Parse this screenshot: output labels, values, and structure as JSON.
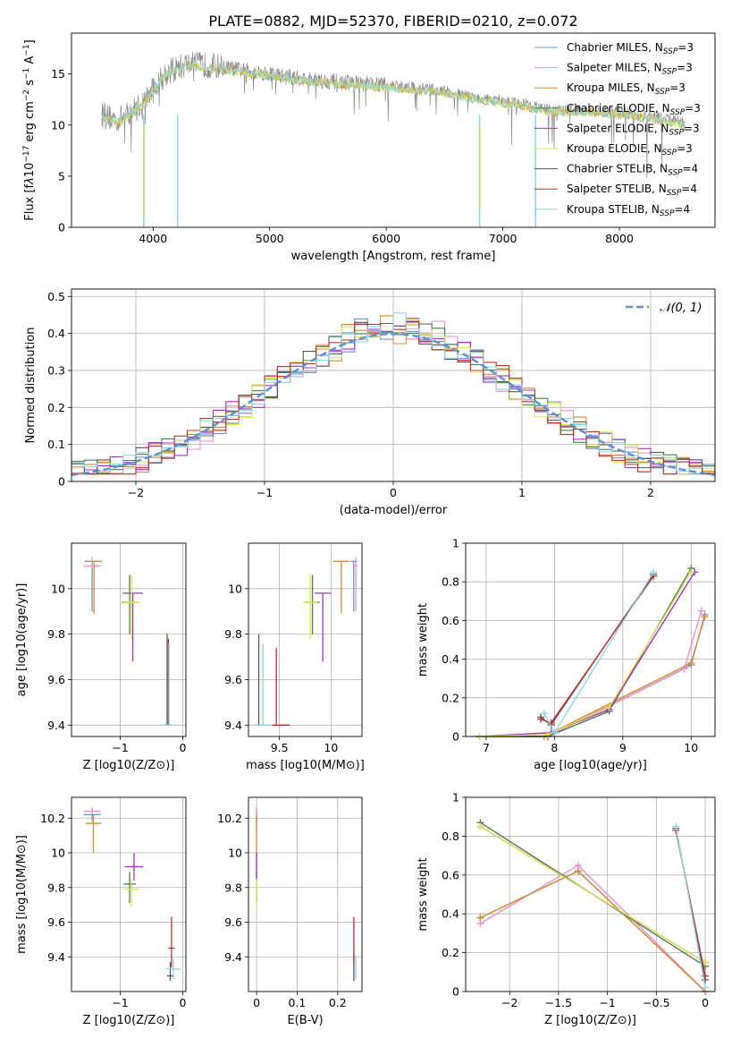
{
  "figure": {
    "title": "PLATE=0882, MJD=52370, FIBERID=0210, z=0.072"
  },
  "series": [
    {
      "name": "Chabrier MILES",
      "sub": "SSP",
      "suffix": "=3",
      "color": "#6a8fde"
    },
    {
      "name": "Salpeter MILES",
      "sub": "SSP",
      "suffix": "=3",
      "color": "#ee8ec8"
    },
    {
      "name": "Kroupa MILES",
      "sub": "SSP",
      "suffix": "=3",
      "color": "#d98a2b"
    },
    {
      "name": "Chabrier ELODIE",
      "sub": "SSP",
      "suffix": "=3",
      "color": "#4f7a52"
    },
    {
      "name": "Salpeter ELODIE",
      "sub": "SSP",
      "suffix": "=3",
      "color": "#a52fc4"
    },
    {
      "name": "Kroupa ELODIE",
      "sub": "SSP",
      "suffix": "=3",
      "color": "#d9e84c"
    },
    {
      "name": "Chabrier STELIB",
      "sub": "SSP",
      "suffix": "=4",
      "color": "#555555"
    },
    {
      "name": "Salpeter STELIB",
      "sub": "SSP",
      "suffix": "=4",
      "color": "#c0302a"
    },
    {
      "name": "Kroupa STELIB",
      "sub": "SSP",
      "suffix": "=4",
      "color": "#8ad8e6"
    }
  ],
  "chart_data": [
    {
      "id": "spectrum",
      "type": "line",
      "xlabel": "wavelength [Angstrom, rest frame]",
      "ylabel_html": "Flux [f<tspan font-style='italic'>λ</tspan>10<tspan dy='-5' font-size='9'>−17</tspan><tspan dy='5'> erg cm</tspan><tspan dy='-5' font-size='9'>−2</tspan><tspan dy='5'> s</tspan><tspan dy='-5' font-size='9'>−1</tspan><tspan dy='5'> A</tspan><tspan dy='-5' font-size='9'>−1</tspan><tspan dy='5'>]</tspan>",
      "xlim": [
        3300,
        8820
      ],
      "ylim": [
        0,
        19
      ],
      "xticks": [
        4000,
        5000,
        6000,
        7000,
        8000
      ],
      "yticks": [
        0,
        5,
        10,
        15
      ],
      "envelope_x": [
        3560,
        3700,
        3900,
        4100,
        4300,
        4500,
        4700,
        5000,
        5300,
        5600,
        5900,
        6200,
        6500,
        6800,
        7100,
        7400,
        7700,
        8000,
        8300,
        8550
      ],
      "envelope_y": [
        11.0,
        10.5,
        12.0,
        15.0,
        16.0,
        15.8,
        15.5,
        15.0,
        14.5,
        14.2,
        14.0,
        13.7,
        13.3,
        12.6,
        12.2,
        11.5,
        11.4,
        11.2,
        10.8,
        10.2
      ],
      "grid": false
    },
    {
      "id": "residuals",
      "type": "histogram",
      "xlabel": "(data-model)/error",
      "ylabel": "Normed distribution",
      "xlim": [
        -2.5,
        2.5
      ],
      "ylim": [
        0,
        0.52
      ],
      "xticks": [
        -2,
        -1,
        0,
        1,
        2
      ],
      "yticks": [
        0.0,
        0.1,
        0.2,
        0.3,
        0.4,
        0.5
      ],
      "bin_width": 0.1,
      "reference": {
        "name": "𝒩(0, 1)",
        "color": "#5b8fd6"
      },
      "grid": true
    },
    {
      "id": "age_vs_Z",
      "type": "errorbar",
      "xlabel": "Z [log10(Z/Z⊙)]",
      "ylabel": "age  [log10(age/yr)]",
      "xlim": [
        -1.78,
        0.05
      ],
      "ylim": [
        9.35,
        10.2
      ],
      "xticks": [
        -1,
        0
      ],
      "yticks": [
        9.4,
        9.6,
        9.8,
        10.0
      ],
      "points": [
        {
          "series": 0,
          "x": -1.45,
          "y": 10.12,
          "xerr": 0.12,
          "yerr_lo": 0.22,
          "yerr_hi": 0.0
        },
        {
          "series": 1,
          "x": -1.45,
          "y": 10.1,
          "xerr": 0.14,
          "yerr_lo": 0.0,
          "yerr_hi": 0.04
        },
        {
          "series": 2,
          "x": -1.42,
          "y": 10.12,
          "xerr": 0.13,
          "yerr_lo": 0.23,
          "yerr_hi": 0.0
        },
        {
          "series": 3,
          "x": -0.85,
          "y": 9.94,
          "xerr": 0.13,
          "yerr_lo": 0.14,
          "yerr_hi": 0.12
        },
        {
          "series": 4,
          "x": -0.8,
          "y": 9.98,
          "xerr": 0.16,
          "yerr_lo": 0.3,
          "yerr_hi": 0.0
        },
        {
          "series": 5,
          "x": -0.82,
          "y": 9.94,
          "xerr": 0.14,
          "yerr_lo": 0.16,
          "yerr_hi": 0.12
        },
        {
          "series": 6,
          "x": -0.25,
          "y": 9.4,
          "xerr": 0.05,
          "yerr_lo": 0.0,
          "yerr_hi": 0.4
        },
        {
          "series": 7,
          "x": -0.23,
          "y": 9.4,
          "xerr": 0.05,
          "yerr_lo": 0.0,
          "yerr_hi": 0.38
        },
        {
          "series": 8,
          "x": -0.22,
          "y": 9.4,
          "xerr": 0.1,
          "yerr_lo": 0.0,
          "yerr_hi": 0.36
        }
      ],
      "grid": true
    },
    {
      "id": "age_vs_mass",
      "type": "errorbar",
      "xlabel": "mass [log10(M/M⊙)]",
      "ylabel": "",
      "xlim": [
        9.2,
        10.3
      ],
      "ylim": [
        9.35,
        10.2
      ],
      "xticks": [
        9.5,
        10.0
      ],
      "yticks": [
        9.4,
        9.6,
        9.8,
        10.0
      ],
      "points": [
        {
          "series": 0,
          "x": 10.22,
          "y": 10.12,
          "xerr": 0.03,
          "yerr_lo": 0.22,
          "yerr_hi": 0.0
        },
        {
          "series": 1,
          "x": 10.24,
          "y": 10.1,
          "xerr": 0.02,
          "yerr_lo": 0.2,
          "yerr_hi": 0.04
        },
        {
          "series": 2,
          "x": 10.1,
          "y": 10.12,
          "xerr": 0.08,
          "yerr_lo": 0.23,
          "yerr_hi": 0.0
        },
        {
          "series": 3,
          "x": 9.82,
          "y": 9.94,
          "xerr": 0.07,
          "yerr_lo": 0.14,
          "yerr_hi": 0.12
        },
        {
          "series": 4,
          "x": 9.92,
          "y": 9.98,
          "xerr": 0.08,
          "yerr_lo": 0.3,
          "yerr_hi": 0.0
        },
        {
          "series": 5,
          "x": 9.8,
          "y": 9.94,
          "xerr": 0.07,
          "yerr_lo": 0.16,
          "yerr_hi": 0.12
        },
        {
          "series": 6,
          "x": 9.3,
          "y": 9.4,
          "xerr": 0.04,
          "yerr_lo": 0.0,
          "yerr_hi": 0.4
        },
        {
          "series": 7,
          "x": 9.47,
          "y": 9.4,
          "xerr": 0.13,
          "yerr_lo": 0.0,
          "yerr_hi": 0.34
        },
        {
          "series": 8,
          "x": 9.34,
          "y": 9.4,
          "xerr": 0.09,
          "yerr_lo": 0.0,
          "yerr_hi": 0.36
        }
      ],
      "grid": true
    },
    {
      "id": "weight_vs_age",
      "type": "line",
      "xlabel": "age  [log10(age/yr)]",
      "ylabel": "mass weight",
      "xlim": [
        6.7,
        10.35
      ],
      "ylim": [
        0,
        1.0
      ],
      "xticks": [
        7,
        8,
        9,
        10
      ],
      "yticks": [
        0.0,
        0.2,
        0.4,
        0.6,
        0.8,
        1.0
      ],
      "lines": [
        {
          "series": 0,
          "x": [
            6.9,
            7.9,
            10.0,
            10.2
          ],
          "y": [
            0.0,
            0.0,
            0.37,
            0.63
          ]
        },
        {
          "series": 1,
          "x": [
            6.9,
            7.9,
            9.9,
            10.15
          ],
          "y": [
            0.0,
            0.0,
            0.35,
            0.65
          ]
        },
        {
          "series": 2,
          "x": [
            6.9,
            7.85,
            10.0,
            10.2
          ],
          "y": [
            0.0,
            0.0,
            0.38,
            0.62
          ]
        },
        {
          "series": 3,
          "x": [
            6.9,
            7.9,
            8.8,
            10.0
          ],
          "y": [
            0.0,
            0.0,
            0.13,
            0.87
          ]
        },
        {
          "series": 4,
          "x": [
            6.9,
            7.95,
            8.8,
            10.05
          ],
          "y": [
            0.0,
            0.02,
            0.14,
            0.85
          ]
        },
        {
          "series": 5,
          "x": [
            6.9,
            7.9,
            8.8,
            10.0
          ],
          "y": [
            0.0,
            0.01,
            0.15,
            0.85
          ]
        },
        {
          "series": 6,
          "x": [
            7.8,
            7.95,
            9.45
          ],
          "y": [
            0.1,
            0.06,
            0.84
          ]
        },
        {
          "series": 7,
          "x": [
            7.8,
            7.95,
            9.45
          ],
          "y": [
            0.09,
            0.07,
            0.83
          ]
        },
        {
          "series": 8,
          "x": [
            7.85,
            8.0,
            9.45
          ],
          "y": [
            0.12,
            0.02,
            0.85
          ]
        }
      ],
      "grid": true
    },
    {
      "id": "mass_vs_Z",
      "type": "errorbar",
      "xlabel": "Z [log10(Z/Z⊙)]",
      "ylabel": "mass [log10(M/M⊙)]",
      "xlim": [
        -1.78,
        0.05
      ],
      "ylim": [
        9.2,
        10.32
      ],
      "xticks": [
        -1,
        0
      ],
      "yticks": [
        9.4,
        9.6,
        9.8,
        10.0,
        10.2
      ],
      "points": [
        {
          "series": 0,
          "x": -1.45,
          "y": 10.22,
          "xerr": 0.14,
          "yerr_lo": 0.04,
          "yerr_hi": 0.04
        },
        {
          "series": 1,
          "x": -1.45,
          "y": 10.24,
          "xerr": 0.14,
          "yerr_lo": 0.02,
          "yerr_hi": 0.02
        },
        {
          "series": 2,
          "x": -1.43,
          "y": 10.17,
          "xerr": 0.13,
          "yerr_lo": 0.17,
          "yerr_hi": 0.05
        },
        {
          "series": 3,
          "x": -0.85,
          "y": 9.82,
          "xerr": 0.1,
          "yerr_lo": 0.11,
          "yerr_hi": 0.07
        },
        {
          "series": 4,
          "x": -0.78,
          "y": 9.92,
          "xerr": 0.15,
          "yerr_lo": 0.08,
          "yerr_hi": 0.08
        },
        {
          "series": 5,
          "x": -0.82,
          "y": 9.79,
          "xerr": 0.13,
          "yerr_lo": 0.1,
          "yerr_hi": 0.06
        },
        {
          "series": 6,
          "x": -0.2,
          "y": 9.29,
          "xerr": 0.05,
          "yerr_lo": 0.03,
          "yerr_hi": 0.08
        },
        {
          "series": 7,
          "x": -0.18,
          "y": 9.45,
          "xerr": 0.05,
          "yerr_lo": 0.11,
          "yerr_hi": 0.18
        },
        {
          "series": 8,
          "x": -0.15,
          "y": 9.33,
          "xerr": 0.12,
          "yerr_lo": 0.06,
          "yerr_hi": 0.06
        }
      ],
      "grid": true
    },
    {
      "id": "mass_vs_ebv",
      "type": "errorbar",
      "xlabel": "E(B-V)",
      "ylabel": "",
      "xlim": [
        -0.02,
        0.26
      ],
      "ylim": [
        9.2,
        10.32
      ],
      "xticks": [
        0.0,
        0.1,
        0.2
      ],
      "yticks": [
        9.4,
        9.6,
        9.8,
        10.0,
        10.2
      ],
      "points": [
        {
          "series": 0,
          "x": 0.0,
          "y": 10.22,
          "xerr": 0.0,
          "yerr_lo": 0.04,
          "yerr_hi": 0.04
        },
        {
          "series": 1,
          "x": 0.0,
          "y": 10.18,
          "xerr": 0.0,
          "yerr_lo": 0.06,
          "yerr_hi": 0.08
        },
        {
          "series": 2,
          "x": 0.0,
          "y": 10.1,
          "xerr": 0.0,
          "yerr_lo": 0.18,
          "yerr_hi": 0.12
        },
        {
          "series": 3,
          "x": 0.0,
          "y": 9.82,
          "xerr": 0.0,
          "yerr_lo": 0.11,
          "yerr_hi": 0.07
        },
        {
          "series": 4,
          "x": 0.0,
          "y": 9.92,
          "xerr": 0.0,
          "yerr_lo": 0.08,
          "yerr_hi": 0.08
        },
        {
          "series": 5,
          "x": 0.0,
          "y": 9.79,
          "xerr": 0.0,
          "yerr_lo": 0.1,
          "yerr_hi": 0.06
        },
        {
          "series": 6,
          "x": 0.24,
          "y": 9.35,
          "xerr": 0.0,
          "yerr_lo": 0.09,
          "yerr_hi": 0.06
        },
        {
          "series": 7,
          "x": 0.24,
          "y": 9.47,
          "xerr": 0.0,
          "yerr_lo": 0.12,
          "yerr_hi": 0.16
        },
        {
          "series": 8,
          "x": 0.245,
          "y": 9.33,
          "xerr": 0.0,
          "yerr_lo": 0.06,
          "yerr_hi": 0.08
        }
      ],
      "grid": true
    },
    {
      "id": "weight_vs_Z",
      "type": "line",
      "xlabel": "Z [log10(Z/Z⊙)]",
      "ylabel": "mass weight",
      "xlim": [
        -2.45,
        0.1
      ],
      "ylim": [
        0,
        1.0
      ],
      "xticks": [
        -2.0,
        -1.5,
        -1.0,
        -0.5,
        0.0
      ],
      "yticks": [
        0.0,
        0.2,
        0.4,
        0.6,
        0.8,
        1.0
      ],
      "lines": [
        {
          "series": 0,
          "x": [
            -2.3,
            -1.3,
            0.0
          ],
          "y": [
            0.38,
            0.62,
            0.0
          ]
        },
        {
          "series": 1,
          "x": [
            -2.3,
            -1.3,
            0.0
          ],
          "y": [
            0.35,
            0.65,
            0.0
          ]
        },
        {
          "series": 2,
          "x": [
            -2.3,
            -1.3,
            0.0
          ],
          "y": [
            0.38,
            0.62,
            0.0
          ]
        },
        {
          "series": 3,
          "x": [
            -2.3,
            0.0
          ],
          "y": [
            0.87,
            0.13
          ]
        },
        {
          "series": 4,
          "x": [
            -2.3,
            0.0
          ],
          "y": [
            0.85,
            0.15
          ]
        },
        {
          "series": 5,
          "x": [
            -2.3,
            0.0
          ],
          "y": [
            0.85,
            0.15
          ]
        },
        {
          "series": 6,
          "x": [
            -0.3,
            0.0
          ],
          "y": [
            0.84,
            0.06
          ]
        },
        {
          "series": 7,
          "x": [
            -0.3,
            0.0
          ],
          "y": [
            0.83,
            0.08
          ]
        },
        {
          "series": 8,
          "x": [
            -0.3,
            0.0
          ],
          "y": [
            0.85,
            0.02
          ]
        }
      ],
      "grid": true
    }
  ]
}
